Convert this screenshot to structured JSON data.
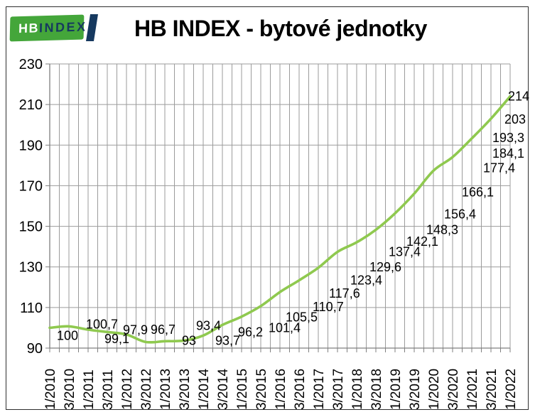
{
  "logo": {
    "hb_text": "HB",
    "index_text": "INDEX",
    "green_color": "#44A63A",
    "navy_color": "#16395F"
  },
  "header": {
    "title": "HB INDEX - bytové jednotky"
  },
  "chart_data": {
    "type": "line",
    "title": "HB INDEX - bytové jednotky",
    "categories": [
      "1/2010",
      "3/2010",
      "1/2011",
      "3/2011",
      "1/2012",
      "3/2012",
      "1/2013",
      "3/2013",
      "1/2014",
      "3/2014",
      "1/2015",
      "3/2015",
      "1/2016",
      "3/2016",
      "1/2017",
      "3/2017",
      "1/2018",
      "3/2018",
      "1/2019",
      "3/2019",
      "1/2020",
      "3/2020",
      "1/2021",
      "3/2021",
      "1/2022"
    ],
    "series": [
      {
        "name": "HB INDEX - bytové jednotky",
        "color": "#8FC94F",
        "values": [
          100,
          100.7,
          99.1,
          97.9,
          96.7,
          93,
          93.4,
          93.7,
          96.2,
          101.4,
          105.5,
          110.7,
          117.6,
          123.4,
          129.6,
          137.4,
          142.1,
          148.3,
          156.4,
          166.1,
          177.4,
          184.1,
          193.3,
          203,
          214
        ]
      }
    ],
    "point_label_texts": [
      "100",
      "100,7",
      "99,1",
      "97,9",
      "96,7",
      "93",
      "93,4",
      "93,7",
      "96,2",
      "101,4",
      "105,5",
      "110,7",
      "117,6",
      "123,4",
      "129,6",
      "137,4",
      "142,1",
      "148,3",
      "156,4",
      "166,1",
      "177,4",
      "184,1",
      "193,3",
      "203",
      "214"
    ],
    "xlabel": "",
    "ylabel": "",
    "ylim": [
      90,
      230
    ],
    "yticks": [
      90,
      110,
      130,
      150,
      170,
      190,
      210,
      230
    ],
    "grid": true,
    "vertical_gridlines_per_label": 2,
    "line_smoothing": true,
    "legend_position": "none",
    "grid_color": "#9b9b9b",
    "axis_color": "#7f7f7f",
    "label_color": "#000000"
  }
}
